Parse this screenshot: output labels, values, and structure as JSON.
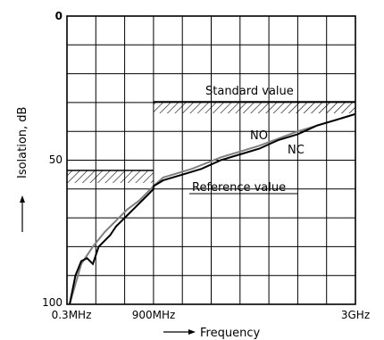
{
  "chart_data": {
    "type": "line",
    "xlabel": "Frequency",
    "ylabel": "Isolation, dB",
    "x_ticks": [
      "0.3MHz",
      "900MHz",
      "3GHz"
    ],
    "y_ticks": [
      "0",
      "50",
      "100"
    ],
    "ylim": [
      0,
      100
    ],
    "y_inverted": true,
    "grid": true,
    "x_axis_note": "piecewise scale: 0.3MHz to 900MHz occupies the first third, 900MHz to 3GHz the remaining two thirds",
    "series": [
      {
        "name": "NC",
        "color": "#000000",
        "points": [
          [
            "0.3MHz",
            100
          ],
          [
            "0.3MHz",
            90
          ],
          [
            "0.3MHz",
            85
          ],
          [
            "0.3MHz",
            84
          ],
          [
            "0.3MHz",
            86
          ],
          [
            "0.3MHz",
            80
          ],
          [
            "0.3MHz",
            78
          ],
          [
            "0.3MHz",
            76
          ],
          [
            "0.3MHz",
            73
          ],
          [
            "0.3MHz",
            71
          ],
          [
            "0.3MHz",
            69
          ],
          [
            "0.3MHz",
            67
          ],
          [
            "0.3MHz",
            65
          ],
          [
            "0.3MHz",
            63
          ],
          [
            "900MHz",
            60
          ],
          [
            "900MHz",
            59
          ],
          [
            "1GHz",
            57
          ],
          [
            "1.2GHz",
            55
          ],
          [
            "1.4GHz",
            53
          ],
          [
            "1.6GHz",
            50
          ],
          [
            "1.8GHz",
            48
          ],
          [
            "2GHz",
            46
          ],
          [
            "2.2GHz",
            43
          ],
          [
            "2.4GHz",
            41
          ],
          [
            "2.6GHz",
            38
          ],
          [
            "2.8GHz",
            36
          ],
          [
            "3GHz",
            34
          ]
        ]
      },
      {
        "name": "NO",
        "color": "#808080",
        "points": [
          [
            "0.3MHz",
            100
          ],
          [
            "0.3MHz",
            86
          ],
          [
            "0.3MHz",
            80
          ],
          [
            "0.3MHz",
            75
          ],
          [
            "0.3MHz",
            71
          ],
          [
            "0.3MHz",
            67
          ],
          [
            "0.3MHz",
            64
          ],
          [
            "900MHz",
            59
          ],
          [
            "1GHz",
            56
          ],
          [
            "1.3GHz",
            53
          ],
          [
            "1.6GHz",
            49
          ],
          [
            "2GHz",
            45
          ],
          [
            "2.4GHz",
            40
          ],
          [
            "2.8GHz",
            36
          ],
          [
            "3GHz",
            34
          ]
        ]
      }
    ],
    "standard_value": {
      "label": "Standard value",
      "segments": [
        {
          "x_from": "0.3MHz",
          "x_to": "900MHz",
          "y": 55
        },
        {
          "x_from": "900MHz",
          "x_to": "3GHz",
          "y": 30
        }
      ]
    },
    "annotations": [
      "Standard value",
      "Reference value",
      "NO",
      "NC"
    ]
  }
}
